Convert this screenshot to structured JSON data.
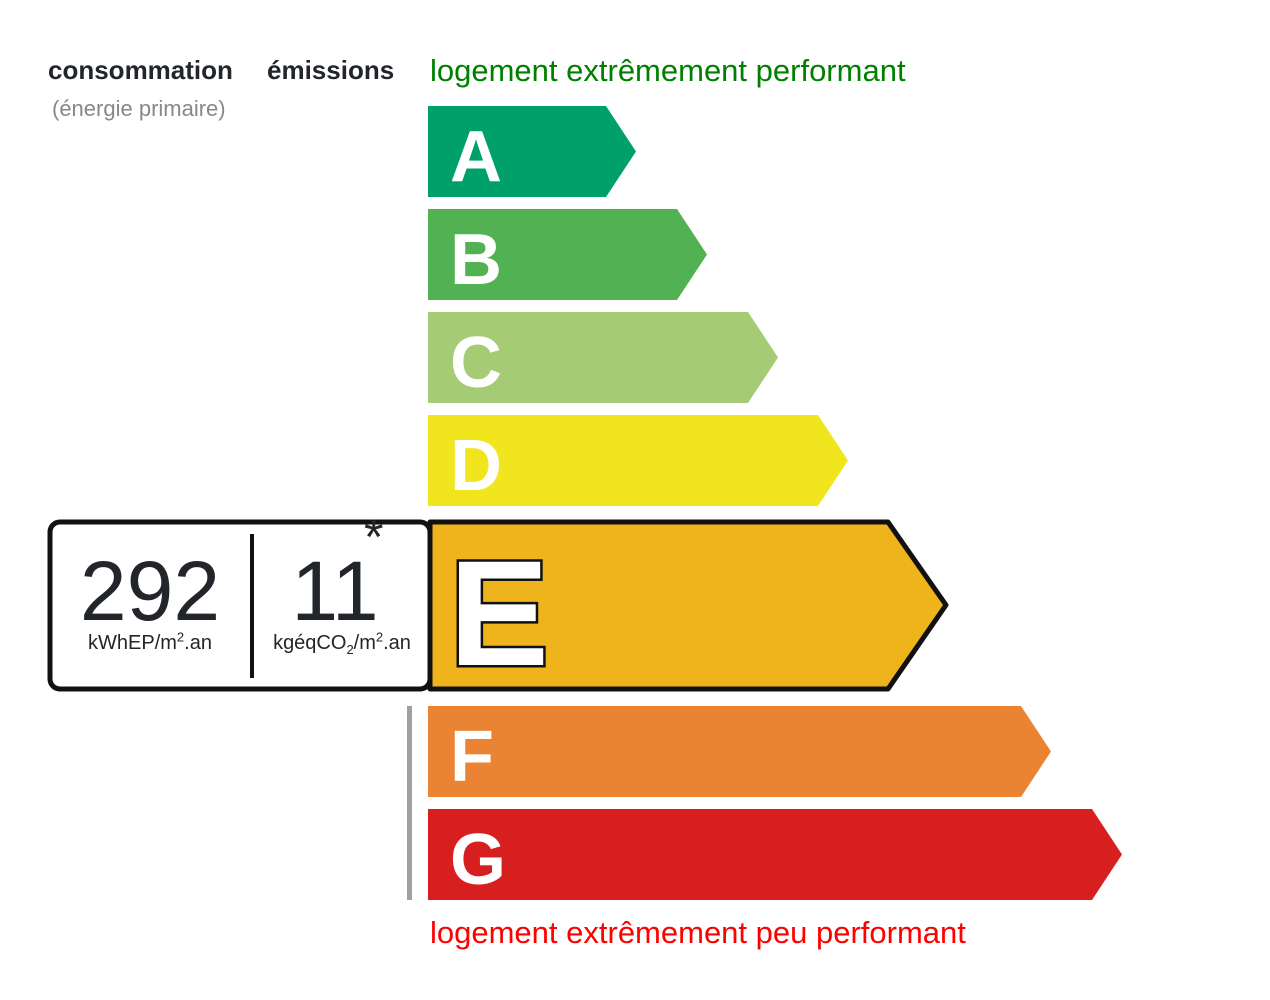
{
  "header": {
    "consumption_label": "consommation",
    "emissions_label": "émissions",
    "primary_energy_note": "(énergie primaire)",
    "best_label": "logement extrêmement performant",
    "worst_label": "logement extrêmement peu performant",
    "best_color": "#008000",
    "worst_color": "#ff0000"
  },
  "classes": [
    {
      "letter": "A",
      "color": "#00a06b"
    },
    {
      "letter": "B",
      "color": "#52b153"
    },
    {
      "letter": "C",
      "color": "#a5cc74"
    },
    {
      "letter": "D",
      "color": "#f1e51d"
    },
    {
      "letter": "E",
      "color": "#efb31b"
    },
    {
      "letter": "F",
      "color": "#eb8335"
    },
    {
      "letter": "G",
      "color": "#d81f20"
    }
  ],
  "current": {
    "class": "E",
    "consumption": "292",
    "consumption_unit": {
      "base": "kWhEP/m",
      "sup": "2",
      "tail": ".an"
    },
    "emissions": "11",
    "emissions_unit": {
      "base": "kgéqCO",
      "sub": "2",
      "mid": "/m",
      "sup": "2",
      "tail": ".an"
    },
    "asterisk": "*"
  }
}
